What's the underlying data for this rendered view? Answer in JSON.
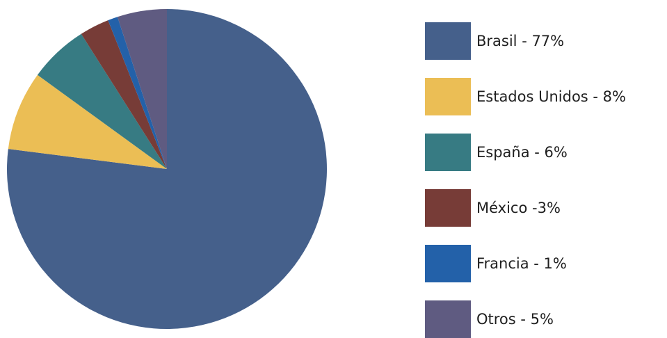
{
  "chart_data": {
    "type": "pie",
    "title": "",
    "slices": [
      {
        "label": "Brasil - 77%",
        "value": 77,
        "color": "#45608B"
      },
      {
        "label": "Estados Unidos - 8%",
        "value": 8,
        "color": "#EBBE55"
      },
      {
        "label": "España - 6%",
        "value": 6,
        "color": "#377B83"
      },
      {
        "label": "México -3%",
        "value": 3,
        "color": "#773C37"
      },
      {
        "label": "Francia - 1%",
        "value": 1,
        "color": "#2361A9"
      },
      {
        "label": "Otros - 5%",
        "value": 5,
        "color": "#5F5B81"
      }
    ],
    "legend_position": "right"
  }
}
